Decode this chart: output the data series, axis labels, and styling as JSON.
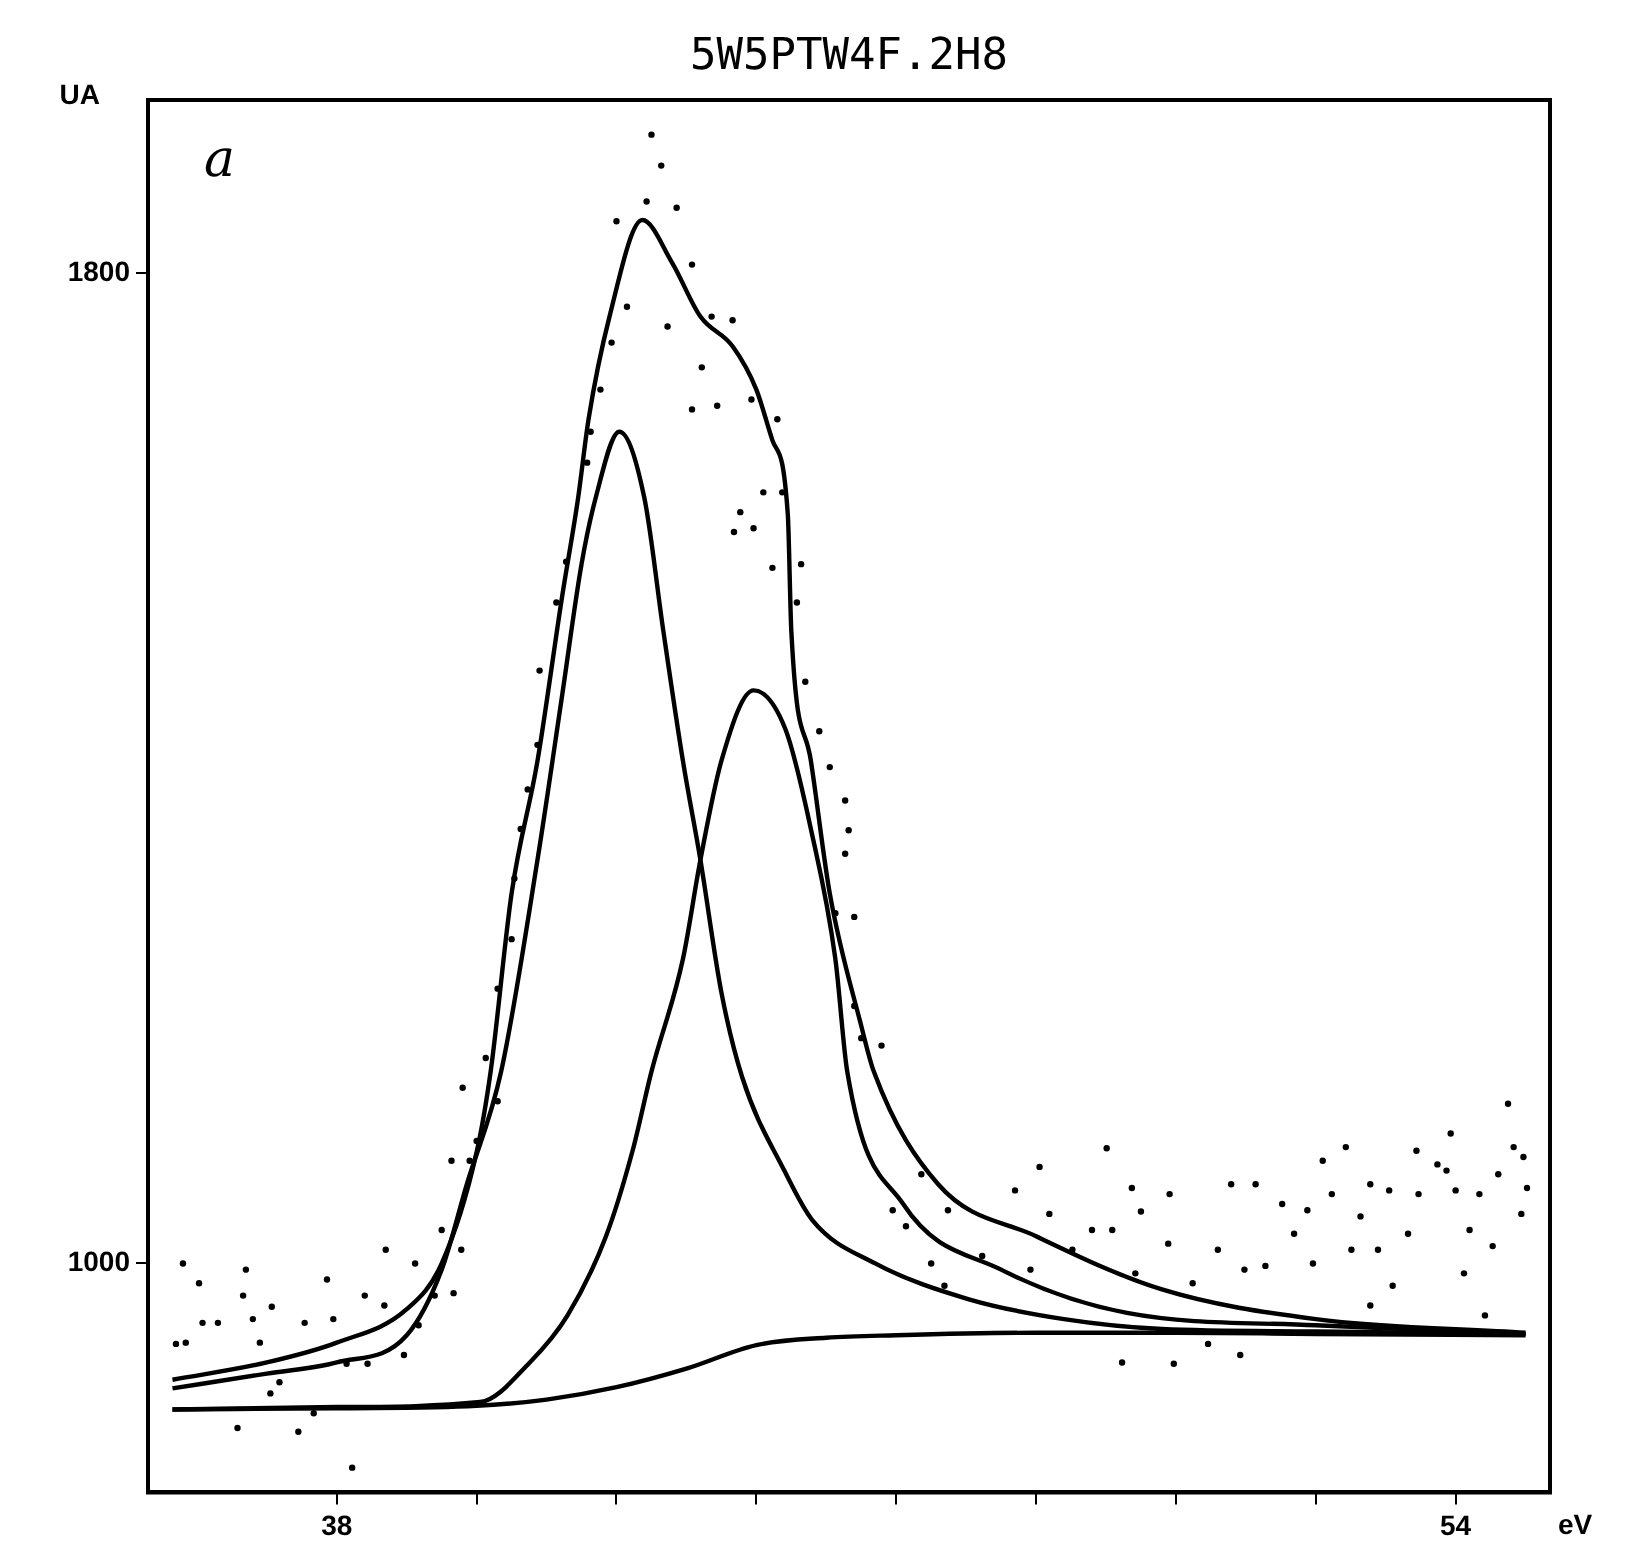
{
  "chart_data": {
    "type": "line",
    "title": "5W5PTW4F.2H8",
    "xlabel": "eV",
    "ylabel": "UA",
    "annotations": [
      "a"
    ],
    "xlim": [
      35.3,
      55.35
    ],
    "ylim": [
      815,
      1940
    ],
    "xticks": [
      38,
      {
        "value": 40,
        "label": null
      },
      {
        "value": 42,
        "label": null
      },
      {
        "value": 44,
        "label": null
      },
      {
        "value": 46,
        "label": null
      },
      {
        "value": 48,
        "label": null
      },
      {
        "value": 50,
        "label": null
      },
      {
        "value": 52,
        "label": null
      },
      54
    ],
    "yticks": [
      1000,
      1800
    ],
    "grid": false,
    "legend": false,
    "series": [
      {
        "type": "scatter",
        "marker": "circle",
        "color": "#000000",
        "x": [
          35.7,
          35.8,
          35.84,
          36.03,
          36.08,
          36.3,
          36.58,
          36.66,
          36.7,
          36.8,
          36.9,
          37.05,
          37.07,
          37.18,
          37.45,
          37.54,
          37.67,
          37.86,
          37.95,
          38.14,
          38.22,
          38.4,
          38.44,
          38.68,
          38.7,
          38.96,
          39.12,
          39.17,
          39.4,
          39.5,
          39.64,
          39.67,
          39.78,
          39.8,
          39.9,
          40.0,
          40.13,
          40.3,
          40.3,
          40.5,
          40.54,
          40.63,
          40.73,
          40.87,
          40.9,
          41.14,
          41.28,
          41.58,
          41.63,
          41.77,
          41.93,
          42.0,
          42.15,
          42.43,
          42.5,
          42.64,
          42.73,
          42.86,
          43.08,
          43.08,
          43.22,
          43.36,
          43.44,
          43.66,
          43.68,
          43.77,
          43.93,
          43.96,
          44.1,
          44.23,
          44.3,
          44.37,
          44.58,
          44.64,
          44.7,
          44.9,
          45.05,
          45.13,
          45.27,
          45.27,
          45.32,
          45.4,
          45.4,
          45.5,
          45.79,
          45.95,
          46.14,
          46.36,
          46.5,
          46.69,
          46.74,
          47.23,
          47.7,
          47.92,
          48.05,
          48.19,
          48.52,
          48.8,
          49.01,
          49.09,
          49.23,
          49.37,
          49.42,
          49.5,
          49.89,
          49.91,
          49.97,
          50.24,
          50.46,
          50.6,
          50.79,
          50.92,
          50.98,
          51.14,
          51.28,
          51.52,
          51.69,
          51.88,
          51.96,
          52.1,
          52.23,
          52.43,
          52.51,
          52.64,
          52.78,
          52.78,
          52.89,
          53.05,
          53.1,
          53.32,
          53.44,
          53.47,
          53.74,
          53.87,
          53.93,
          54.0,
          54.12,
          54.2,
          54.34,
          54.42,
          54.53,
          54.61,
          54.75,
          54.83,
          54.94,
          54.97,
          55.02
        ],
        "values": [
          935,
          1000,
          936,
          984,
          952,
          952,
          867,
          974,
          995,
          955,
          936,
          895,
          965,
          904,
          864,
          952,
          879,
          987,
          955,
          919,
          835,
          974,
          919,
          966,
          1011,
          926,
          1000,
          950,
          974,
          1027,
          1083,
          976,
          1011,
          1142,
          1083,
          1099,
          1166,
          1131,
          1222,
          1262,
          1311,
          1351,
          1383,
          1419,
          1479,
          1534,
          1567,
          1647,
          1672,
          1706,
          1744,
          1842,
          1773,
          1858,
          1912,
          1887,
          1757,
          1853,
          1807,
          1690,
          1724,
          1765,
          1693,
          1762,
          1591,
          1607,
          1698,
          1594,
          1623,
          1562,
          1682,
          1623,
          1534,
          1565,
          1470,
          1430,
          1401,
          1283,
          1374,
          1331,
          1350,
          1280,
          1208,
          1182,
          1176,
          1043,
          1030,
          1072,
          1000,
          982,
          1043,
          1006,
          1059,
          995,
          1078,
          1040,
          1011,
          1027,
          1093,
          1027,
          920,
          1061,
          992,
          1042,
          1016,
          1056,
          919,
          984,
          935,
          1011,
          1064,
          926,
          995,
          1064,
          998,
          1048,
          1024,
          1043,
          1000,
          1083,
          1056,
          1094,
          1011,
          1038,
          966,
          1064,
          1011,
          1059,
          982,
          1024,
          1091,
          1056,
          1080,
          1075,
          1105,
          1059,
          992,
          1027,
          1056,
          958,
          1014,
          1072,
          1129,
          1094,
          1040,
          1086,
          1061
        ]
      },
      {
        "type": "line",
        "marker": "none",
        "color": "#000000",
        "x": [
          35.65,
          37,
          38,
          39,
          39.5,
          40,
          40.2,
          40.5,
          40.87,
          41.22,
          41.45,
          41.6,
          41.9,
          42.37,
          42.8,
          43.2,
          43.66,
          44.0,
          44.23,
          44.45,
          44.5,
          44.78,
          45.05,
          45.5,
          45.68,
          46.6,
          48,
          49.8,
          52,
          55
        ],
        "values": [
          906,
          920,
          936,
          963,
          1000,
          1090,
          1155,
          1299,
          1406,
          1538,
          1618,
          1682,
          1765,
          1843,
          1808,
          1765,
          1741,
          1706,
          1665,
          1605,
          1511,
          1406,
          1299,
          1192,
          1155,
          1064,
          1022,
          979,
          955,
          944
        ]
      },
      {
        "type": "line",
        "marker": "none",
        "color": "#000000",
        "x": [
          35.65,
          37,
          38,
          39,
          39.5,
          39.86,
          40.35,
          40.87,
          41.22,
          41.5,
          41.7,
          42.04,
          42.4,
          42.67,
          42.95,
          43.2,
          43.5,
          43.8,
          44.4,
          44.8,
          45.7,
          47.04,
          48.4,
          49.8,
          52,
          55
        ],
        "values": [
          899,
          911,
          920,
          942,
          995,
          1064,
          1155,
          1326,
          1458,
          1565,
          1618,
          1672,
          1618,
          1511,
          1406,
          1326,
          1219,
          1150,
          1075,
          1035,
          1000,
          971,
          955,
          947,
          945,
          943
        ]
      },
      {
        "type": "line",
        "marker": "none",
        "color": "#000000",
        "x": [
          35.65,
          38,
          40.05,
          40.76,
          41.3,
          41.85,
          42.23,
          42.5,
          42.95,
          43.2,
          43.5,
          43.96,
          44.42,
          44.78,
          45.13,
          45.3,
          46.1,
          47.5,
          49.3,
          52,
          55
        ],
        "values": [
          882,
          884,
          888,
          920,
          958,
          1022,
          1091,
          1155,
          1246,
          1326,
          1406,
          1463,
          1431,
          1351,
          1246,
          1155,
          1048,
          995,
          960,
          950,
          943
        ]
      },
      {
        "type": "line",
        "marker": "none",
        "color": "#000000",
        "x": [
          35.65,
          38,
          40,
          41,
          42,
          43,
          44,
          45,
          46,
          48,
          50,
          52,
          55
        ],
        "values": [
          882,
          883,
          885,
          890,
          900,
          915,
          934,
          940,
          942,
          944,
          944,
          943,
          942
        ]
      }
    ]
  }
}
